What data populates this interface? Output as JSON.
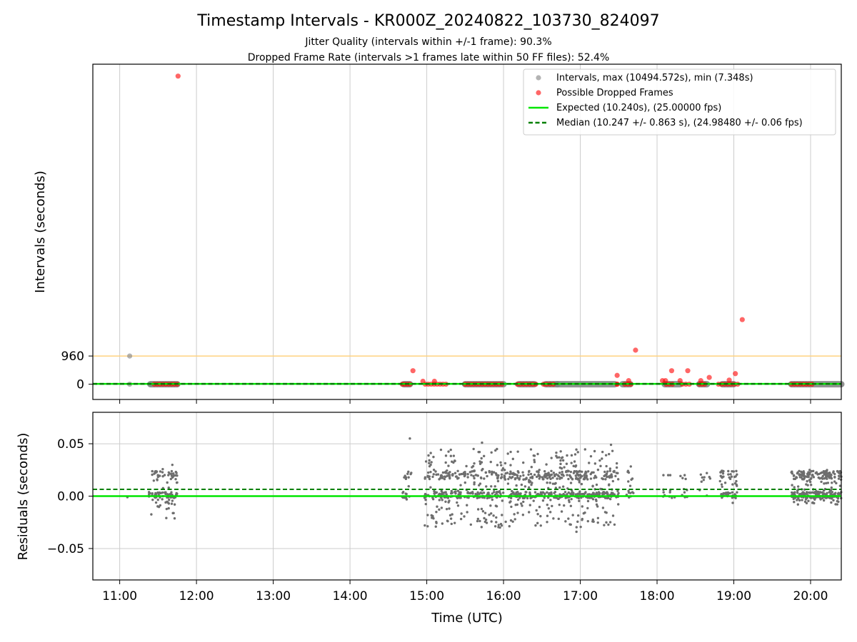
{
  "title": "Timestamp Intervals - KR000Z_20240822_103730_824097",
  "subtitle_1": "Jitter Quality (intervals within +/-1 frame): 90.3%",
  "subtitle_2": "Dropped Frame Rate (intervals >1 frames late within 50 FF files): 52.4%",
  "colors": {
    "intervals": "#808080",
    "dropped": "#ff0000",
    "expected": "#00e600",
    "median": "#007f00",
    "threshold": "#ffd27f",
    "grid": "#cccccc"
  },
  "chart_data": [
    {
      "type": "scatter",
      "ylabel": "Intervals (seconds)",
      "yticks": [
        "0",
        "960"
      ],
      "ytick_values": [
        0,
        960
      ],
      "threshold_line": 960,
      "x_range_hours": [
        10.65,
        20.4
      ],
      "ylim": [
        -520,
        10900
      ],
      "grid": "vertical",
      "legend_position": "top-right",
      "legend": [
        {
          "kind": "marker",
          "color": "#808080",
          "label": "Intervals, max (10494.572s), min (7.348s)"
        },
        {
          "kind": "marker",
          "color": "#ff0000",
          "label": "Possible Dropped Frames"
        },
        {
          "kind": "line",
          "color": "#00e600",
          "label": "Expected (10.240s), (25.00000 fps)"
        },
        {
          "kind": "dashed",
          "color": "#007f00",
          "label": "Median (10.247 +/- 0.863 s), (24.98480 +/- 0.06 fps)"
        }
      ],
      "expected": 10.24,
      "median": 10.247,
      "interval_points": [
        {
          "t": 11.13,
          "v": 960
        },
        {
          "t": 11.13,
          "v": 0
        },
        {
          "t": 11.4,
          "v": 0
        }
      ],
      "interval_bands": [
        [
          11.4,
          11.75
        ],
        [
          14.7,
          14.78
        ],
        [
          15.5,
          16.0
        ],
        [
          16.2,
          16.4
        ],
        [
          16.55,
          16.7
        ],
        [
          16.7,
          17.45
        ],
        [
          17.55,
          17.65
        ],
        [
          18.1,
          18.3
        ],
        [
          18.55,
          18.65
        ],
        [
          18.85,
          19.0
        ],
        [
          19.75,
          20.4
        ]
      ],
      "dropped_points": [
        {
          "t": 11.76,
          "v": 10494.572
        },
        {
          "t": 14.82,
          "v": 460
        },
        {
          "t": 14.95,
          "v": 100
        },
        {
          "t": 15.1,
          "v": 100
        },
        {
          "t": 17.48,
          "v": 300
        },
        {
          "t": 17.63,
          "v": 120
        },
        {
          "t": 17.72,
          "v": 1160
        },
        {
          "t": 18.07,
          "v": 120
        },
        {
          "t": 18.11,
          "v": 120
        },
        {
          "t": 18.19,
          "v": 460
        },
        {
          "t": 18.3,
          "v": 120
        },
        {
          "t": 18.4,
          "v": 460
        },
        {
          "t": 18.57,
          "v": 120
        },
        {
          "t": 18.68,
          "v": 230
        },
        {
          "t": 18.94,
          "v": 140
        },
        {
          "t": 19.02,
          "v": 360
        },
        {
          "t": 19.11,
          "v": 2200
        }
      ],
      "dropped_zero_runs": [
        [
          11.45,
          11.75
        ],
        [
          14.68,
          14.78
        ],
        [
          14.98,
          15.25
        ],
        [
          15.5,
          15.98
        ],
        [
          16.18,
          16.42
        ],
        [
          16.52,
          16.65
        ],
        [
          17.48,
          17.48
        ],
        [
          17.58,
          17.66
        ],
        [
          18.12,
          18.2
        ],
        [
          18.33,
          18.42
        ],
        [
          18.55,
          18.62
        ],
        [
          18.8,
          18.96
        ],
        [
          19.0,
          19.05
        ],
        [
          19.75,
          20.02
        ]
      ]
    },
    {
      "type": "scatter",
      "ylabel": "Residuals (seconds)",
      "xlabel": "Time (UTC)",
      "xticks": [
        "11:00",
        "12:00",
        "13:00",
        "14:00",
        "15:00",
        "16:00",
        "17:00",
        "18:00",
        "19:00",
        "20:00"
      ],
      "xtick_values": [
        11,
        12,
        13,
        14,
        15,
        16,
        17,
        18,
        19,
        20
      ],
      "yticks": [
        "0.05",
        "0.00",
        "−0.05"
      ],
      "ytick_values": [
        0.05,
        0,
        -0.05
      ],
      "x_range_hours": [
        10.65,
        20.4
      ],
      "ylim": [
        -0.08,
        0.08
      ],
      "grid": "both",
      "expected_residual": 0,
      "median_residual": 0.0065,
      "residual_clusters": [
        {
          "t": [
            11.38,
            11.75
          ],
          "lo": -0.022,
          "hi": 0.03,
          "n": 110
        },
        {
          "t": [
            14.68,
            14.8
          ],
          "lo": -0.005,
          "hi": 0.03,
          "n": 22
        },
        {
          "t": [
            14.97,
            17.5
          ],
          "lo": -0.03,
          "hi": 0.045,
          "n": 900
        },
        {
          "t": [
            17.6,
            17.7
          ],
          "lo": -0.025,
          "hi": 0.03,
          "n": 16
        },
        {
          "t": [
            18.05,
            18.25
          ],
          "lo": -0.002,
          "hi": 0.02,
          "n": 12
        },
        {
          "t": [
            18.3,
            18.45
          ],
          "lo": -0.002,
          "hi": 0.02,
          "n": 10
        },
        {
          "t": [
            18.55,
            18.7
          ],
          "lo": -0.002,
          "hi": 0.022,
          "n": 10
        },
        {
          "t": [
            18.82,
            19.05
          ],
          "lo": -0.008,
          "hi": 0.025,
          "n": 60
        },
        {
          "t": [
            19.75,
            20.4
          ],
          "lo": -0.008,
          "hi": 0.025,
          "n": 300
        }
      ],
      "residual_outliers": [
        {
          "t": 11.1,
          "v": -0.001
        },
        {
          "t": 14.78,
          "v": 0.055
        },
        {
          "t": 15.72,
          "v": 0.051
        },
        {
          "t": 16.95,
          "v": -0.034
        },
        {
          "t": 17.4,
          "v": 0.049
        }
      ]
    }
  ]
}
